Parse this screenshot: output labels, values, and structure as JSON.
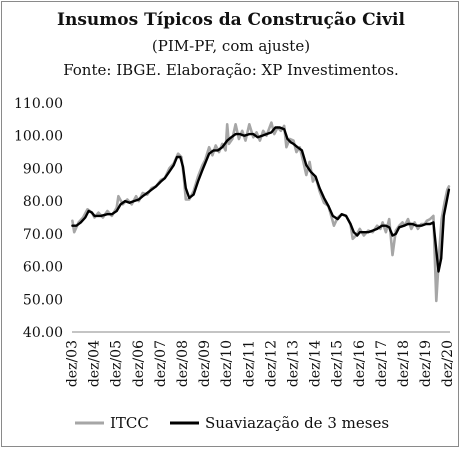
{
  "chart_data": {
    "type": "line",
    "title": "Insumos Típicos da Construção Civil",
    "subtitle": "(PIM-PF, com ajuste)",
    "source": "Fonte: IBGE. Elaboração: XP Investimentos.",
    "ylim": [
      40,
      110
    ],
    "yticks": [
      "110.00",
      "100.00",
      "90.00",
      "80.00",
      "70.00",
      "60.00",
      "50.00",
      "40.00"
    ],
    "xticks": [
      "dez/03",
      "dez/04",
      "dez/05",
      "dez/06",
      "dez/07",
      "dez/08",
      "dez/09",
      "dez/10",
      "dez/11",
      "dez/12",
      "dez/13",
      "dez/14",
      "dez/15",
      "dez/16",
      "dez/17",
      "dez/18",
      "dez/19",
      "dez/20"
    ],
    "xlim": [
      2003.9,
      2021.0
    ],
    "legend_position": "bottom",
    "series": [
      {
        "name": "ITCC",
        "color": "#a6a6a6",
        "points": [
          [
            2003.92,
            74.0
          ],
          [
            2004.0,
            70.5
          ],
          [
            2004.2,
            73.5
          ],
          [
            2004.4,
            75.0
          ],
          [
            2004.6,
            77.5
          ],
          [
            2004.8,
            76.5
          ],
          [
            2004.92,
            75.0
          ],
          [
            2005.1,
            76.5
          ],
          [
            2005.3,
            75.0
          ],
          [
            2005.5,
            77.0
          ],
          [
            2005.7,
            75.5
          ],
          [
            2005.92,
            78.0
          ],
          [
            2006.0,
            81.5
          ],
          [
            2006.2,
            79.0
          ],
          [
            2006.4,
            80.5
          ],
          [
            2006.6,
            79.0
          ],
          [
            2006.8,
            81.5
          ],
          [
            2006.92,
            80.0
          ],
          [
            2007.1,
            82.5
          ],
          [
            2007.3,
            82.0
          ],
          [
            2007.5,
            84.0
          ],
          [
            2007.7,
            84.5
          ],
          [
            2007.92,
            86.5
          ],
          [
            2008.1,
            87.0
          ],
          [
            2008.3,
            90.0
          ],
          [
            2008.5,
            91.5
          ],
          [
            2008.7,
            94.5
          ],
          [
            2008.85,
            93.5
          ],
          [
            2008.95,
            88.0
          ],
          [
            2009.05,
            80.5
          ],
          [
            2009.2,
            80.5
          ],
          [
            2009.4,
            83.0
          ],
          [
            2009.6,
            87.5
          ],
          [
            2009.8,
            91.0
          ],
          [
            2009.92,
            92.5
          ],
          [
            2010.1,
            96.5
          ],
          [
            2010.25,
            94.0
          ],
          [
            2010.4,
            97.0
          ],
          [
            2010.55,
            95.0
          ],
          [
            2010.7,
            97.5
          ],
          [
            2010.85,
            95.5
          ],
          [
            2010.92,
            103.5
          ],
          [
            2011.0,
            97.5
          ],
          [
            2011.15,
            99.0
          ],
          [
            2011.3,
            103.5
          ],
          [
            2011.45,
            99.0
          ],
          [
            2011.6,
            101.5
          ],
          [
            2011.75,
            98.5
          ],
          [
            2011.92,
            103.5
          ],
          [
            2012.1,
            99.5
          ],
          [
            2012.25,
            101.0
          ],
          [
            2012.4,
            98.5
          ],
          [
            2012.55,
            101.5
          ],
          [
            2012.7,
            100.0
          ],
          [
            2012.92,
            104.0
          ],
          [
            2013.05,
            100.5
          ],
          [
            2013.2,
            102.5
          ],
          [
            2013.35,
            101.5
          ],
          [
            2013.5,
            103.0
          ],
          [
            2013.6,
            96.5
          ],
          [
            2013.75,
            99.0
          ],
          [
            2013.92,
            98.5
          ],
          [
            2014.05,
            95.0
          ],
          [
            2014.2,
            96.5
          ],
          [
            2014.35,
            92.5
          ],
          [
            2014.5,
            88.0
          ],
          [
            2014.65,
            92.0
          ],
          [
            2014.8,
            86.0
          ],
          [
            2014.92,
            87.5
          ],
          [
            2015.1,
            83.0
          ],
          [
            2015.3,
            79.5
          ],
          [
            2015.5,
            78.5
          ],
          [
            2015.65,
            75.0
          ],
          [
            2015.75,
            72.5
          ],
          [
            2015.92,
            75.0
          ],
          [
            2016.1,
            76.0
          ],
          [
            2016.3,
            75.5
          ],
          [
            2016.5,
            73.0
          ],
          [
            2016.6,
            68.5
          ],
          [
            2016.75,
            69.5
          ],
          [
            2016.92,
            71.5
          ],
          [
            2017.1,
            69.5
          ],
          [
            2017.3,
            71.0
          ],
          [
            2017.5,
            70.5
          ],
          [
            2017.7,
            72.5
          ],
          [
            2017.85,
            71.5
          ],
          [
            2017.95,
            73.5
          ],
          [
            2018.1,
            70.5
          ],
          [
            2018.25,
            74.5
          ],
          [
            2018.4,
            63.5
          ],
          [
            2018.55,
            71.0
          ],
          [
            2018.7,
            72.5
          ],
          [
            2018.85,
            73.5
          ],
          [
            2018.95,
            72.5
          ],
          [
            2019.1,
            74.5
          ],
          [
            2019.25,
            71.5
          ],
          [
            2019.4,
            73.5
          ],
          [
            2019.55,
            71.5
          ],
          [
            2019.7,
            73.0
          ],
          [
            2019.85,
            73.0
          ],
          [
            2019.95,
            74.0
          ],
          [
            2020.1,
            74.5
          ],
          [
            2020.25,
            75.5
          ],
          [
            2020.38,
            49.5
          ],
          [
            2020.5,
            63.0
          ],
          [
            2020.62,
            74.5
          ],
          [
            2020.75,
            79.5
          ],
          [
            2020.88,
            83.5
          ],
          [
            2020.95,
            84.5
          ]
        ]
      },
      {
        "name": "Suaviazação de 3 meses",
        "color": "#000000",
        "points": [
          [
            2003.92,
            72.5
          ],
          [
            2004.1,
            72.5
          ],
          [
            2004.3,
            73.5
          ],
          [
            2004.5,
            75.0
          ],
          [
            2004.65,
            77.0
          ],
          [
            2004.8,
            76.5
          ],
          [
            2004.92,
            75.5
          ],
          [
            2005.2,
            75.5
          ],
          [
            2005.5,
            76.0
          ],
          [
            2005.7,
            76.0
          ],
          [
            2005.92,
            77.0
          ],
          [
            2006.1,
            79.0
          ],
          [
            2006.3,
            80.0
          ],
          [
            2006.5,
            79.5
          ],
          [
            2006.7,
            80.0
          ],
          [
            2006.92,
            80.5
          ],
          [
            2007.1,
            81.5
          ],
          [
            2007.3,
            82.5
          ],
          [
            2007.5,
            83.5
          ],
          [
            2007.7,
            84.5
          ],
          [
            2007.92,
            86.0
          ],
          [
            2008.1,
            87.0
          ],
          [
            2008.3,
            89.0
          ],
          [
            2008.5,
            91.0
          ],
          [
            2008.65,
            93.5
          ],
          [
            2008.8,
            93.5
          ],
          [
            2008.92,
            90.5
          ],
          [
            2009.05,
            84.0
          ],
          [
            2009.2,
            81.0
          ],
          [
            2009.4,
            82.0
          ],
          [
            2009.6,
            86.0
          ],
          [
            2009.8,
            89.5
          ],
          [
            2009.92,
            91.5
          ],
          [
            2010.1,
            94.5
          ],
          [
            2010.3,
            95.5
          ],
          [
            2010.5,
            95.5
          ],
          [
            2010.7,
            96.5
          ],
          [
            2010.92,
            98.5
          ],
          [
            2011.1,
            99.5
          ],
          [
            2011.3,
            100.5
          ],
          [
            2011.5,
            100.5
          ],
          [
            2011.7,
            100.0
          ],
          [
            2011.92,
            100.5
          ],
          [
            2012.1,
            100.5
          ],
          [
            2012.3,
            99.5
          ],
          [
            2012.5,
            100.0
          ],
          [
            2012.7,
            100.5
          ],
          [
            2012.92,
            101.0
          ],
          [
            2013.1,
            102.5
          ],
          [
            2013.3,
            102.5
          ],
          [
            2013.5,
            102.0
          ],
          [
            2013.65,
            99.0
          ],
          [
            2013.8,
            98.0
          ],
          [
            2013.92,
            97.5
          ],
          [
            2014.1,
            96.5
          ],
          [
            2014.3,
            95.5
          ],
          [
            2014.5,
            91.0
          ],
          [
            2014.7,
            89.0
          ],
          [
            2014.92,
            87.5
          ],
          [
            2015.1,
            84.0
          ],
          [
            2015.3,
            81.0
          ],
          [
            2015.5,
            78.5
          ],
          [
            2015.7,
            75.5
          ],
          [
            2015.92,
            74.5
          ],
          [
            2016.1,
            76.0
          ],
          [
            2016.3,
            75.5
          ],
          [
            2016.5,
            73.0
          ],
          [
            2016.65,
            70.5
          ],
          [
            2016.8,
            69.5
          ],
          [
            2016.92,
            70.5
          ],
          [
            2017.1,
            70.5
          ],
          [
            2017.3,
            70.5
          ],
          [
            2017.5,
            71.0
          ],
          [
            2017.7,
            71.5
          ],
          [
            2017.92,
            72.5
          ],
          [
            2018.1,
            72.5
          ],
          [
            2018.25,
            72.0
          ],
          [
            2018.4,
            69.5
          ],
          [
            2018.55,
            70.0
          ],
          [
            2018.7,
            72.0
          ],
          [
            2018.92,
            72.5
          ],
          [
            2019.1,
            73.0
          ],
          [
            2019.3,
            73.0
          ],
          [
            2019.5,
            72.5
          ],
          [
            2019.7,
            72.5
          ],
          [
            2019.92,
            73.0
          ],
          [
            2020.1,
            73.0
          ],
          [
            2020.25,
            73.5
          ],
          [
            2020.38,
            65.0
          ],
          [
            2020.48,
            58.5
          ],
          [
            2020.6,
            62.5
          ],
          [
            2020.72,
            75.5
          ],
          [
            2020.85,
            80.0
          ],
          [
            2020.95,
            83.5
          ]
        ]
      }
    ]
  }
}
